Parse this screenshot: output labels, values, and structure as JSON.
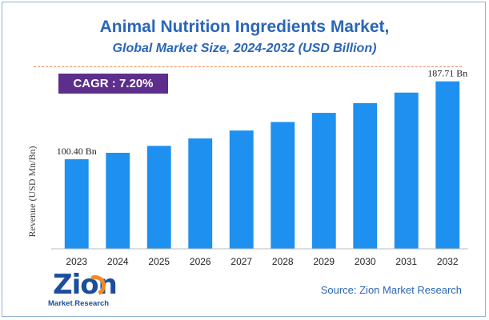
{
  "chart_data": {
    "type": "bar",
    "title": "Animal Nutrition Ingredients Market,",
    "subtitle": "Global Market Size, 2024-2032 (USD Billion)",
    "ylabel": "Revenue (USD Mn/Bn)",
    "xlabel": "",
    "categories": [
      "2023",
      "2024",
      "2025",
      "2026",
      "2027",
      "2028",
      "2029",
      "2030",
      "2031",
      "2032"
    ],
    "values": [
      100.4,
      107.63,
      115.38,
      123.69,
      132.6,
      142.15,
      152.38,
      163.35,
      175.11,
      187.71
    ],
    "data_labels": [
      {
        "index": 0,
        "text": "100.40 Bn"
      },
      {
        "index": 9,
        "text": "187.71 Bn"
      }
    ],
    "ylim": [
      0,
      200
    ],
    "grid": false,
    "bar_color": "#1e90ef"
  },
  "cagr": {
    "label": "CAGR : ",
    "value": "7.20%"
  },
  "source": "Source: Zion Market Research",
  "logo": {
    "word": "Zion",
    "line1": "Market",
    "sep": ".",
    "line2": "Research"
  },
  "colors": {
    "title": "#2a66b8",
    "cagr_bg": "#5d2e8c",
    "divider": "#ef8a4f",
    "bar": "#1e90ef"
  }
}
